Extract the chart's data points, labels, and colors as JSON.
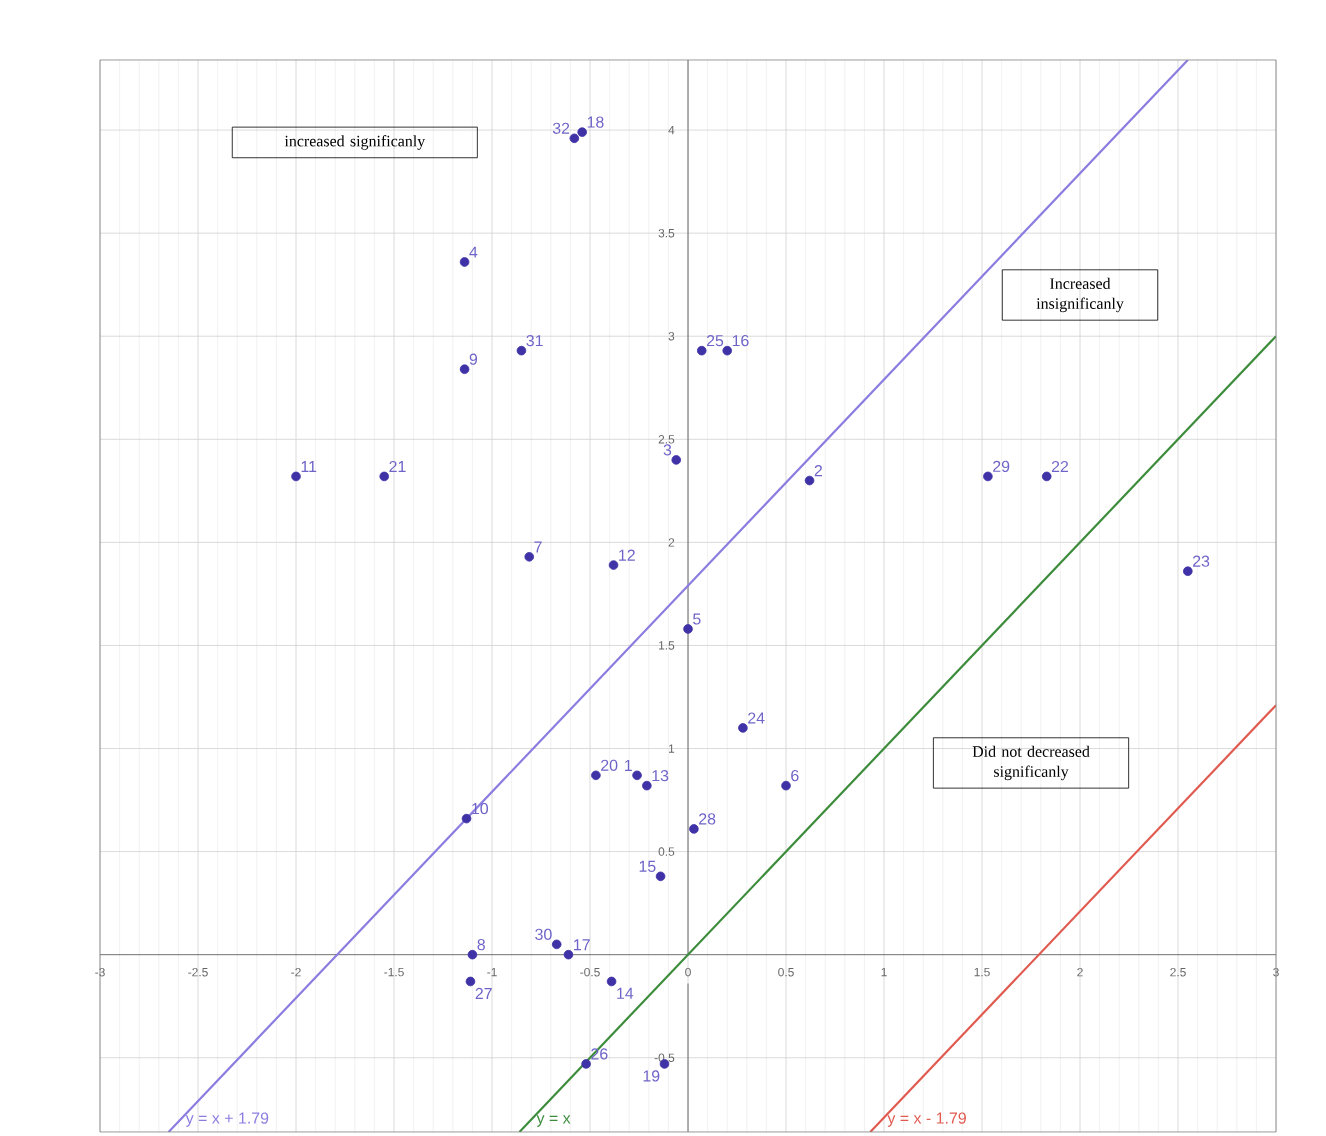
{
  "chart_data": {
    "type": "scatter",
    "grid": true,
    "legend": false,
    "xlim": [
      -3,
      3
    ],
    "ylim": [
      -0.86,
      4.34
    ],
    "xticks": [
      {
        "value": -3,
        "label": "-3"
      },
      -2.5,
      -2,
      -1.5,
      -1,
      -0.5,
      {
        "value": 0,
        "label": "0"
      },
      0.5,
      1,
      1.5,
      2,
      2.5,
      {
        "value": 3,
        "label": "3"
      }
    ],
    "yticks": [
      -0.5,
      0.5,
      1,
      1.5,
      2,
      2.5,
      3,
      3.5,
      4
    ],
    "series": [
      {
        "color": "#3f32a6",
        "marker": "circle",
        "x": [
          -0.26,
          0.62,
          -0.06,
          -1.14,
          0.0,
          0.5,
          -0.81,
          -1.1,
          -1.14,
          -1.13,
          -2.0,
          -0.38,
          -0.21,
          -0.39,
          -0.14,
          0.2,
          -0.61,
          -0.54,
          -0.12,
          -0.47,
          -1.55,
          1.83,
          2.55,
          0.28,
          0.07,
          -0.52,
          -1.11,
          0.03,
          1.53,
          -0.67,
          -0.85,
          -0.58
        ],
        "values": [
          0.87,
          2.3,
          2.4,
          3.36,
          1.58,
          0.82,
          1.93,
          0.0,
          2.84,
          0.66,
          2.32,
          1.89,
          0.82,
          -0.13,
          0.38,
          2.93,
          0.0,
          3.99,
          -0.53,
          0.87,
          2.32,
          2.32,
          1.86,
          1.1,
          2.93,
          -0.53,
          -0.13,
          0.61,
          2.32,
          0.05,
          2.93,
          3.96
        ]
      },
      {
        "type": "line",
        "name": "y = x + 1.79",
        "color": "#8b7de0",
        "x": [
          -2.65,
          2.55
        ],
        "values": [
          -0.86,
          4.34
        ]
      },
      {
        "type": "line",
        "name": "y = x",
        "color": "#3c8c3c",
        "x": [
          -0.86,
          3
        ],
        "values": [
          -0.86,
          3
        ]
      },
      {
        "type": "line",
        "name": "y = x - 1.79",
        "color": "#e05a50",
        "x": [
          0.93,
          3
        ],
        "values": [
          -0.86,
          1.21
        ]
      }
    ],
    "annotations": [
      "increased significanly",
      "Increased insignificanly",
      "Did not decreased significanly",
      {
        "text": "1",
        "x": -0.26,
        "y": 0.87
      },
      {
        "text": "2",
        "x": 0.62,
        "y": 2.3
      },
      {
        "text": "3",
        "x": -0.06,
        "y": 2.4
      },
      {
        "text": "4",
        "x": -1.14,
        "y": 3.36
      },
      {
        "text": "5",
        "x": 0.0,
        "y": 1.58
      },
      {
        "text": "6",
        "x": 0.5,
        "y": 0.82
      },
      {
        "text": "7",
        "x": -0.81,
        "y": 1.93
      },
      {
        "text": "8",
        "x": -1.1,
        "y": 0.0
      },
      {
        "text": "9",
        "x": -1.14,
        "y": 2.84
      },
      {
        "text": "10",
        "x": -1.13,
        "y": 0.66
      },
      {
        "text": "11",
        "x": -2.0,
        "y": 2.32
      },
      {
        "text": "12",
        "x": -0.38,
        "y": 1.89
      },
      {
        "text": "13",
        "x": -0.21,
        "y": 0.82
      },
      {
        "text": "14",
        "x": -0.39,
        "y": -0.13
      },
      {
        "text": "15",
        "x": -0.14,
        "y": 0.38
      },
      {
        "text": "16",
        "x": 0.2,
        "y": 2.93
      },
      {
        "text": "17",
        "x": -0.61,
        "y": 0.0
      },
      {
        "text": "18",
        "x": -0.54,
        "y": 3.99
      },
      {
        "text": "19",
        "x": -0.12,
        "y": -0.53
      },
      {
        "text": "20",
        "x": -0.47,
        "y": 0.87
      },
      {
        "text": "21",
        "x": -1.55,
        "y": 2.32
      },
      {
        "text": "22",
        "x": 1.83,
        "y": 2.32
      },
      {
        "text": "23",
        "x": 2.55,
        "y": 1.86
      },
      {
        "text": "24",
        "x": 0.28,
        "y": 1.1
      },
      {
        "text": "25",
        "x": 0.07,
        "y": 2.93
      },
      {
        "text": "26",
        "x": -0.52,
        "y": -0.53
      },
      {
        "text": "27",
        "x": -1.11,
        "y": -0.13
      },
      {
        "text": "28",
        "x": 0.03,
        "y": 0.61
      },
      {
        "text": "29",
        "x": 1.53,
        "y": 2.32
      },
      {
        "text": "30",
        "x": -0.67,
        "y": 0.05
      },
      {
        "text": "31",
        "x": -0.85,
        "y": 2.93
      },
      {
        "text": "32",
        "x": -0.58,
        "y": 3.96
      }
    ]
  }
}
